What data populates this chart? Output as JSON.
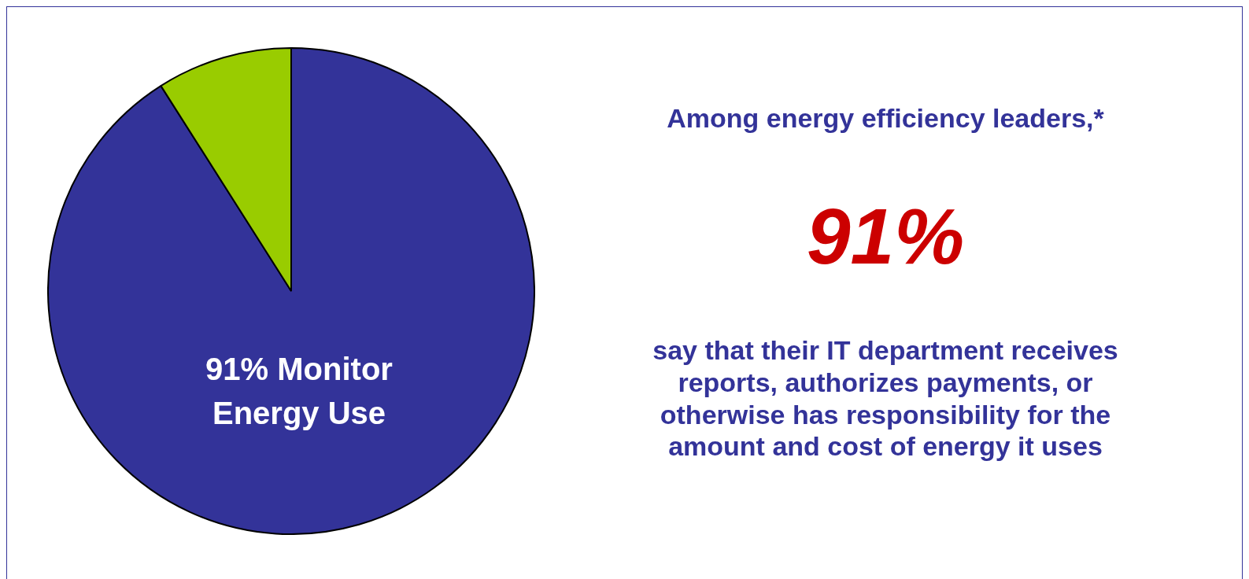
{
  "chart_data": {
    "type": "pie",
    "categories": [
      "91% Monitor Energy Use",
      null
    ],
    "values": [
      91,
      9
    ],
    "colors": [
      "#333399",
      "#99cc00"
    ],
    "legend": false,
    "annotations": [
      "Among energy efficiency leaders,*",
      "91%",
      "say that their IT department receives reports, authorizes payments, or otherwise has responsibility for the amount and cost of energy it uses"
    ]
  }
}
